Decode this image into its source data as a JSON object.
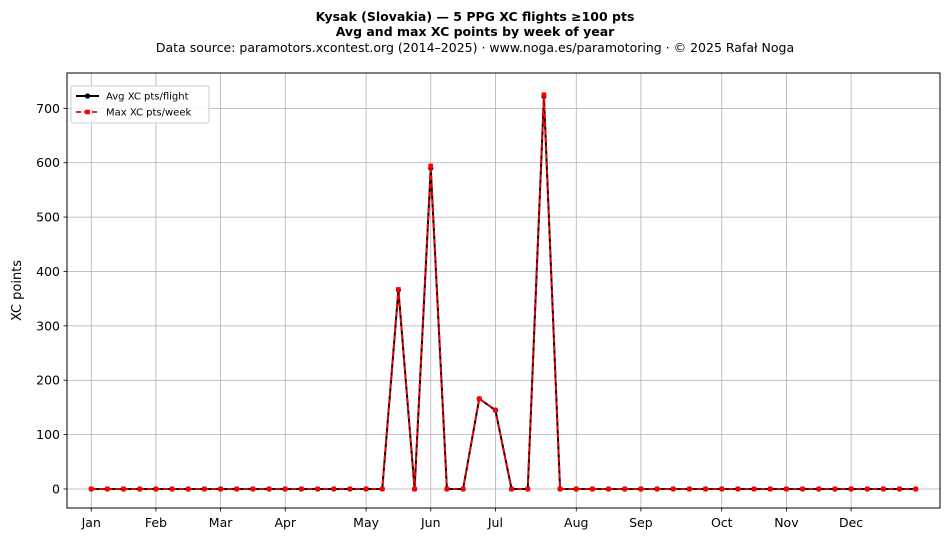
{
  "chart_data": {
    "type": "line",
    "title": "Kysak (Slovakia)  —  5 PPG XC flights ≥100 pts",
    "subtitle": "Avg and max XC points by week of year",
    "source_note": "Data source: paramotors.xcontest.org (2014–2025)  ·  www.noga.es/paramotoring  ·  © 2025 Rafał Noga",
    "xlabel": "",
    "ylabel": "XC points",
    "xlim": [
      -0.5,
      53.5
    ],
    "ylim": [
      -35,
      765
    ],
    "grid": true,
    "legend_position": "top-left",
    "x_tick_labels": [
      "Jan",
      "Feb",
      "Mar",
      "Apr",
      "May",
      "Jun",
      "Jul",
      "Aug",
      "Sep",
      "Oct",
      "Nov",
      "Dec"
    ],
    "x_tick_weeks": [
      1,
      5,
      9,
      13,
      18,
      22,
      26,
      31,
      35,
      40,
      44,
      48
    ],
    "y_ticks": [
      0,
      100,
      200,
      300,
      400,
      500,
      600,
      700
    ],
    "x": [
      1,
      2,
      3,
      4,
      5,
      6,
      7,
      8,
      9,
      10,
      11,
      12,
      13,
      14,
      15,
      16,
      17,
      18,
      19,
      20,
      21,
      22,
      23,
      24,
      25,
      26,
      27,
      28,
      29,
      30,
      31,
      32,
      33,
      34,
      35,
      36,
      37,
      38,
      39,
      40,
      41,
      42,
      43,
      44,
      45,
      46,
      47,
      48,
      49,
      50,
      51,
      52
    ],
    "series": [
      {
        "name": "Avg XC pts/flight",
        "color": "#000000",
        "style": "solid",
        "marker": "circle",
        "values": [
          0,
          0,
          0,
          0,
          0,
          0,
          0,
          0,
          0,
          0,
          0,
          0,
          0,
          0,
          0,
          0,
          0,
          0,
          0,
          366,
          0,
          590,
          0,
          0,
          166,
          145,
          0,
          0,
          722,
          0,
          0,
          0,
          0,
          0,
          0,
          0,
          0,
          0,
          0,
          0,
          0,
          0,
          0,
          0,
          0,
          0,
          0,
          0,
          0,
          0,
          0,
          0
        ]
      },
      {
        "name": "Max XC pts/week",
        "color": "#ff0000",
        "style": "dashed",
        "marker": "square",
        "values": [
          0,
          0,
          0,
          0,
          0,
          0,
          0,
          0,
          0,
          0,
          0,
          0,
          0,
          0,
          0,
          0,
          0,
          0,
          0,
          367,
          0,
          594,
          0,
          0,
          166,
          145,
          0,
          0,
          725,
          0,
          0,
          0,
          0,
          0,
          0,
          0,
          0,
          0,
          0,
          0,
          0,
          0,
          0,
          0,
          0,
          0,
          0,
          0,
          0,
          0,
          0,
          0
        ]
      }
    ]
  }
}
